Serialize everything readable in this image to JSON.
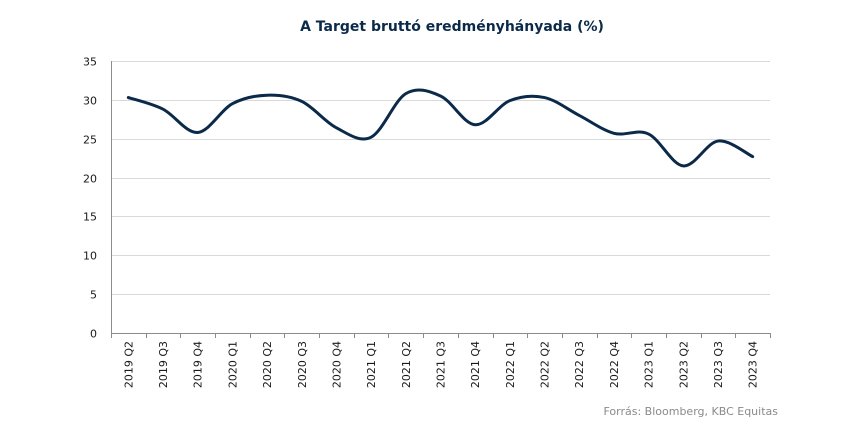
{
  "chart_data": {
    "type": "line",
    "title": "A Target bruttó eredményhányada  (%)",
    "xlabel": "",
    "ylabel": "",
    "categories": [
      "2019 Q2",
      "2019 Q3",
      "2019 Q4",
      "2020 Q1",
      "2020 Q2",
      "2020 Q3",
      "2020 Q4",
      "2021 Q1",
      "2021 Q2",
      "2021 Q3",
      "2021 Q4",
      "2022 Q1",
      "2022 Q2",
      "2022 Q3",
      "2022 Q4",
      "2023 Q1",
      "2023 Q2",
      "2023 Q3",
      "2023 Q4"
    ],
    "series": [
      {
        "values": [
          30.3,
          28.8,
          25.8,
          29.5,
          30.6,
          29.8,
          26.4,
          25.2,
          30.8,
          30.5,
          26.8,
          29.9,
          30.3,
          28.0,
          25.7,
          25.6,
          21.5,
          24.7,
          22.7
        ]
      }
    ],
    "ylim": [
      0,
      35
    ],
    "yticks": [
      0,
      5,
      10,
      15,
      20,
      25,
      30,
      35
    ],
    "grid": true,
    "line_color": "#0b2a4a",
    "source": "Forrás: Bloomberg,  KBC Equitas"
  }
}
